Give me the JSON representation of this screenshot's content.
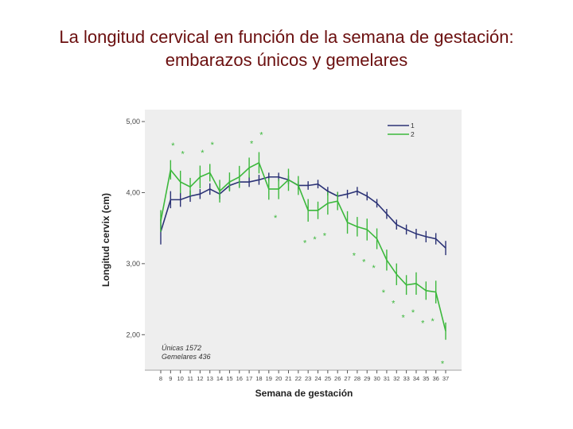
{
  "slide": {
    "title_line1": "La longitud cervical en función de la semana de gestación:",
    "title_line2": "embarazos únicos y gemelares"
  },
  "chart_data": {
    "type": "line",
    "xlabel": "Semana de gestación",
    "ylabel": "Longitud cervix (cm)",
    "x": [
      8,
      9,
      10,
      11,
      12,
      13,
      14,
      15,
      16,
      17,
      18,
      19,
      20,
      21,
      22,
      23,
      24,
      25,
      26,
      27,
      28,
      29,
      30,
      31,
      32,
      33,
      34,
      35,
      36,
      37
    ],
    "ylim": [
      1.5,
      5.0
    ],
    "yticks": [
      "5,00",
      "4,00",
      "3,00",
      "2,00"
    ],
    "ytick_values": [
      5.0,
      4.0,
      3.0,
      2.0
    ],
    "grid": false,
    "legend_position": "top-right",
    "series": [
      {
        "name": "1",
        "color": "#2b3275",
        "values": [
          3.45,
          3.9,
          3.9,
          3.95,
          3.98,
          4.05,
          3.98,
          4.1,
          4.15,
          4.15,
          4.18,
          4.22,
          4.22,
          4.18,
          4.1,
          4.1,
          4.12,
          4.02,
          3.95,
          3.98,
          4.02,
          3.95,
          3.85,
          3.7,
          3.55,
          3.48,
          3.42,
          3.38,
          3.35,
          3.22
        ],
        "err": [
          0.18,
          0.12,
          0.1,
          0.08,
          0.07,
          0.08,
          0.07,
          0.07,
          0.07,
          0.07,
          0.07,
          0.06,
          0.06,
          0.06,
          0.06,
          0.06,
          0.06,
          0.06,
          0.06,
          0.06,
          0.06,
          0.06,
          0.06,
          0.07,
          0.07,
          0.07,
          0.07,
          0.08,
          0.08,
          0.1
        ]
      },
      {
        "name": "2",
        "color": "#3cb83c",
        "values": [
          3.6,
          4.32,
          4.15,
          4.08,
          4.22,
          4.28,
          4.02,
          4.15,
          4.22,
          4.35,
          4.42,
          4.05,
          4.05,
          4.18,
          4.1,
          3.75,
          3.75,
          3.85,
          3.88,
          3.58,
          3.52,
          3.48,
          3.35,
          3.05,
          2.85,
          2.7,
          2.72,
          2.62,
          2.6,
          2.05
        ]
      }
    ],
    "significance_markers": {
      "symbol": "*",
      "x": [
        9,
        10,
        12,
        13,
        17,
        18,
        20,
        23,
        24,
        25,
        28,
        29,
        30,
        31,
        32,
        33,
        34,
        35,
        36,
        37
      ]
    },
    "annotations": [
      "Únicas 1572",
      "Gemelares 436"
    ]
  }
}
